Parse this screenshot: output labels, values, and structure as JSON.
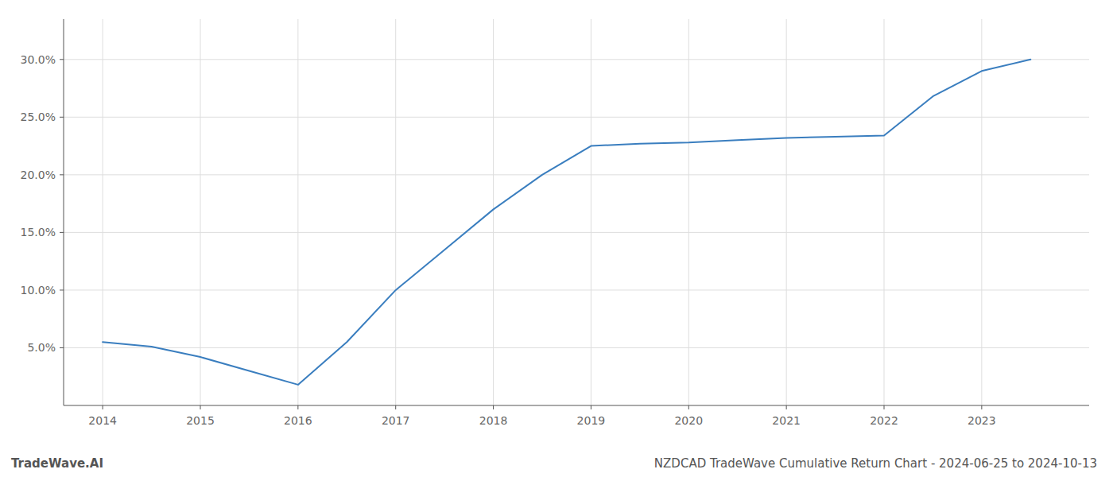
{
  "chart_data": {
    "type": "line",
    "title": "NZDCAD TradeWave Cumulative Return Chart - 2024-06-25 to 2024-10-13",
    "annotations": [
      "TradeWave.AI"
    ],
    "color": "#3a7ebf",
    "grid": true,
    "x": [
      2014.0,
      2014.5,
      2015.0,
      2015.5,
      2016.0,
      2016.5,
      2017.0,
      2017.5,
      2018.0,
      2018.5,
      2019.0,
      2019.5,
      2020.0,
      2020.5,
      2021.0,
      2021.5,
      2022.0,
      2022.5,
      2023.0,
      2023.5
    ],
    "values": [
      0.055,
      0.051,
      0.042,
      0.03,
      0.018,
      0.055,
      0.1,
      0.135,
      0.17,
      0.2,
      0.225,
      0.227,
      0.228,
      0.23,
      0.232,
      0.233,
      0.234,
      0.268,
      0.29,
      0.3
    ],
    "xlim": [
      2013.6,
      2024.1
    ],
    "ylim": [
      0.0,
      0.335
    ],
    "xticks": [
      2014,
      2015,
      2016,
      2017,
      2018,
      2019,
      2020,
      2021,
      2022,
      2023
    ],
    "yticks": [
      {
        "value": 0.05,
        "label": "5.0%"
      },
      {
        "value": 0.1,
        "label": "10.0%"
      },
      {
        "value": 0.15,
        "label": "15.0%"
      },
      {
        "value": 0.2,
        "label": "20.0%"
      },
      {
        "value": 0.25,
        "label": "25.0%"
      },
      {
        "value": 0.3,
        "label": "30.0%"
      }
    ]
  }
}
